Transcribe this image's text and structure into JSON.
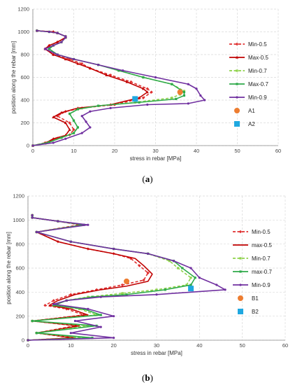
{
  "chart_data": [
    {
      "type": "line",
      "caption_letter": "a",
      "xlabel": "stress in rebar [MPa]",
      "ylabel": "position along the rebar [mm]",
      "xlim": [
        0,
        60
      ],
      "ylim": [
        0,
        1200
      ],
      "xticks": [
        0,
        10,
        20,
        30,
        40,
        50,
        60
      ],
      "yticks": [
        0,
        200,
        400,
        600,
        800,
        1000,
        1200
      ],
      "grid": true,
      "legend_position": "right",
      "series": [
        {
          "name": "Min-0.5",
          "color": "#e03030",
          "style": "dashed",
          "marker": "diamond",
          "x": [
            0,
            3,
            6,
            9,
            10,
            9,
            6,
            8,
            12,
            20,
            27,
            29,
            28,
            24,
            19,
            14,
            12,
            9,
            5,
            3,
            4,
            6,
            8,
            8,
            6,
            5,
            1
          ],
          "y": [
            0,
            25,
            65,
            95,
            140,
            200,
            260,
            300,
            330,
            360,
            420,
            470,
            500,
            560,
            620,
            680,
            720,
            760,
            800,
            850,
            880,
            910,
            950,
            960,
            990,
            1000,
            1010
          ]
        },
        {
          "name": "Max-0.5",
          "color": "#c00000",
          "style": "solid",
          "marker": "triangle",
          "x": [
            0,
            3,
            5,
            8,
            9,
            8,
            5,
            7,
            11,
            19,
            26,
            28,
            27,
            23,
            18,
            14,
            11,
            8,
            5,
            3,
            4,
            6,
            8,
            8,
            6,
            5,
            1
          ],
          "y": [
            0,
            20,
            60,
            90,
            140,
            200,
            250,
            290,
            330,
            360,
            420,
            470,
            500,
            560,
            620,
            680,
            720,
            760,
            800,
            850,
            880,
            910,
            950,
            960,
            990,
            1000,
            1010
          ]
        },
        {
          "name": "Min-0.7",
          "color": "#8fd24a",
          "style": "dashed",
          "marker": "square",
          "x": [
            0,
            4,
            7,
            10,
            11,
            10,
            9,
            11,
            16,
            25,
            34,
            36,
            37,
            34,
            27,
            21,
            16,
            10,
            6,
            4,
            5,
            7,
            8,
            8,
            6,
            4,
            1
          ],
          "y": [
            0,
            30,
            70,
            110,
            160,
            220,
            280,
            320,
            350,
            380,
            420,
            450,
            480,
            540,
            600,
            660,
            710,
            760,
            800,
            850,
            880,
            910,
            950,
            960,
            990,
            1000,
            1010
          ]
        },
        {
          "name": "Max-0.7",
          "color": "#2eaa4a",
          "style": "solid",
          "marker": "square",
          "x": [
            0,
            4,
            7,
            10,
            11,
            10,
            9,
            11,
            16,
            26,
            35,
            37,
            37,
            34,
            27,
            21,
            16,
            10,
            6,
            4,
            5,
            7,
            8,
            8,
            6,
            4,
            1
          ],
          "y": [
            0,
            30,
            70,
            110,
            160,
            220,
            280,
            320,
            350,
            380,
            410,
            440,
            470,
            540,
            600,
            660,
            710,
            760,
            800,
            850,
            880,
            910,
            950,
            960,
            990,
            1000,
            1010
          ]
        },
        {
          "name": "Min-0.9",
          "color": "#7030a0",
          "style": "solid",
          "marker": "circle",
          "x": [
            0,
            5,
            8,
            12,
            14,
            13,
            12,
            14,
            19,
            28,
            38,
            42,
            41,
            40,
            38,
            30,
            22,
            16,
            10,
            6,
            3,
            5,
            7,
            8,
            8,
            6,
            4,
            1
          ],
          "y": [
            0,
            25,
            60,
            110,
            160,
            210,
            260,
            300,
            330,
            360,
            370,
            400,
            440,
            500,
            540,
            600,
            660,
            710,
            760,
            800,
            850,
            880,
            910,
            950,
            960,
            990,
            1000,
            1010
          ]
        },
        {
          "name": "A1",
          "color": "#ed7d31",
          "style": "none",
          "marker": "bigcircle",
          "x": [
            36
          ],
          "y": [
            470
          ]
        },
        {
          "name": "A2",
          "color": "#1fa8e0",
          "style": "none",
          "marker": "bigsquare",
          "x": [
            25
          ],
          "y": [
            410
          ]
        }
      ]
    },
    {
      "type": "line",
      "caption_letter": "b",
      "xlabel": "stress in rebar [MPa]",
      "ylabel": "position along the rebar [mm]",
      "xlim": [
        0,
        60
      ],
      "ylim": [
        0,
        1200
      ],
      "xticks": [
        0,
        10,
        20,
        30,
        40,
        50,
        60
      ],
      "yticks": [
        0,
        200,
        400,
        600,
        800,
        1000,
        1200
      ],
      "grid": true,
      "legend_position": "right",
      "series": [
        {
          "name": "Min-0.5",
          "color": "#e03030",
          "style": "dashed",
          "marker": "diamond",
          "x": [
            0,
            10,
            2,
            11,
            1,
            13,
            9,
            4,
            6,
            10,
            16,
            22,
            27,
            28,
            26,
            24,
            20,
            14,
            7,
            2,
            12,
            7,
            1,
            1
          ],
          "y": [
            0,
            20,
            60,
            120,
            160,
            210,
            260,
            290,
            330,
            380,
            420,
            460,
            500,
            560,
            620,
            680,
            720,
            760,
            820,
            900,
            960,
            990,
            1020,
            1040
          ]
        },
        {
          "name": "max-0.5",
          "color": "#c00000",
          "style": "solid",
          "marker": "none",
          "x": [
            0,
            11,
            2,
            12,
            1,
            14,
            10,
            5,
            7,
            11,
            17,
            23,
            28,
            29,
            27,
            25,
            20,
            14,
            7,
            2,
            13,
            7,
            1,
            1
          ],
          "y": [
            0,
            20,
            60,
            120,
            160,
            210,
            260,
            290,
            330,
            380,
            420,
            450,
            490,
            550,
            620,
            680,
            720,
            760,
            820,
            900,
            960,
            990,
            1020,
            1040
          ]
        },
        {
          "name": "Min-0.7",
          "color": "#8fd24a",
          "style": "dashed",
          "marker": "square",
          "x": [
            0,
            13,
            2,
            14,
            1,
            16,
            12,
            6,
            9,
            14,
            22,
            30,
            37,
            38,
            35,
            33,
            28,
            20,
            10,
            2,
            13,
            7,
            1,
            1
          ],
          "y": [
            0,
            20,
            60,
            120,
            160,
            210,
            260,
            290,
            330,
            360,
            390,
            420,
            460,
            520,
            600,
            660,
            720,
            760,
            820,
            900,
            960,
            990,
            1020,
            1040
          ]
        },
        {
          "name": "max-0.7",
          "color": "#2eaa4a",
          "style": "solid",
          "marker": "square",
          "x": [
            0,
            15,
            2,
            16,
            1,
            17,
            13,
            6,
            9,
            15,
            23,
            32,
            38,
            39,
            36,
            34,
            28,
            20,
            10,
            2,
            13,
            7,
            1,
            1
          ],
          "y": [
            0,
            20,
            60,
            120,
            160,
            210,
            260,
            290,
            330,
            360,
            380,
            420,
            460,
            520,
            600,
            660,
            720,
            760,
            820,
            900,
            960,
            990,
            1020,
            1040
          ]
        },
        {
          "name": "Min-0.9",
          "color": "#7030a0",
          "style": "solid",
          "marker": "circle",
          "x": [
            0,
            20,
            10,
            17,
            11,
            20,
            14,
            6,
            9,
            17,
            30,
            46,
            44,
            40,
            38,
            34,
            28,
            20,
            10,
            2,
            14,
            7,
            1,
            1
          ],
          "y": [
            0,
            20,
            60,
            110,
            160,
            200,
            260,
            300,
            330,
            360,
            380,
            420,
            460,
            520,
            600,
            660,
            720,
            760,
            820,
            900,
            960,
            990,
            1020,
            1040
          ]
        },
        {
          "name": "B1",
          "color": "#ed7d31",
          "style": "none",
          "marker": "bigcircle",
          "x": [
            23
          ],
          "y": [
            490
          ]
        },
        {
          "name": "B2",
          "color": "#1fa8e0",
          "style": "none",
          "marker": "bigsquare",
          "x": [
            38
          ],
          "y": [
            430
          ]
        }
      ]
    }
  ]
}
